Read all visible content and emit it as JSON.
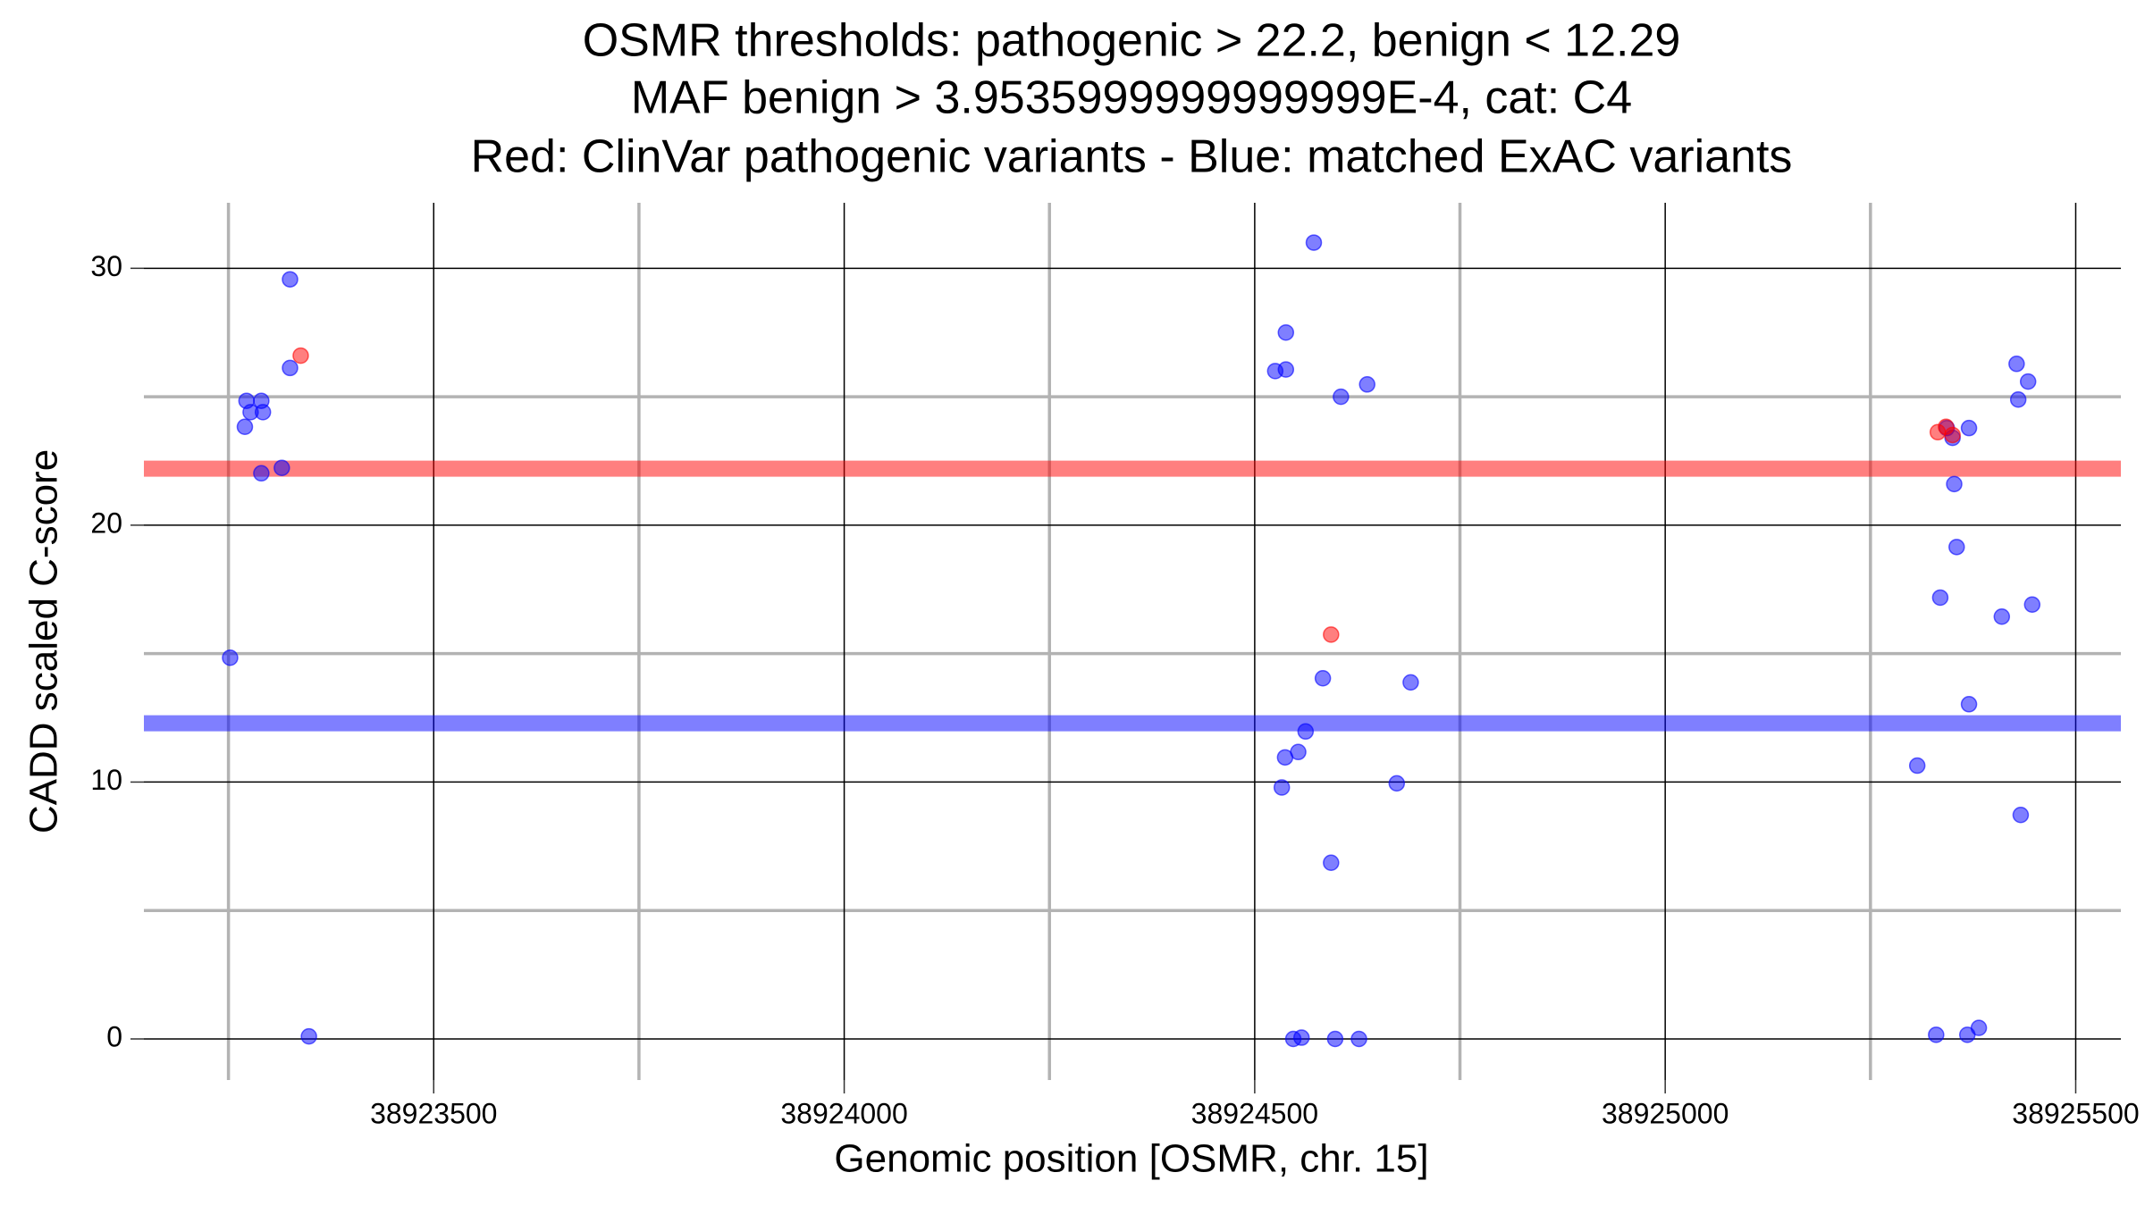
{
  "chart_data": {
    "type": "scatter",
    "title": [
      "OSMR thresholds: pathogenic > 22.2, benign < 12.29",
      "MAF benign > 3.9535999999999999E-4, cat: C4",
      "Red: ClinVar pathogenic variants - Blue: matched ExAC variants"
    ],
    "xlabel": "Genomic position [OSMR, chr. 15]",
    "ylabel": "CADD scaled C-score",
    "xlim": [
      38923147,
      38925555
    ],
    "ylim": [
      -1.6,
      32.55
    ],
    "xticks": [
      38923500,
      38924000,
      38924500,
      38925000,
      38925500
    ],
    "xminorticks": [
      38923250,
      38923750,
      38924250,
      38924750,
      38925250
    ],
    "yticks": [
      0,
      10,
      20,
      30
    ],
    "yminorticks": [
      5,
      15,
      25
    ],
    "grid": true,
    "hlines": [
      {
        "value": 22.2,
        "color": "#ff0000"
      },
      {
        "value": 12.29,
        "color": "#0000ff"
      }
    ],
    "series": [
      {
        "color": "#0000ff",
        "x": [
          38923252,
          38923272,
          38923277,
          38923270,
          38923290,
          38923292,
          38923290,
          38923315,
          38923325,
          38923325,
          38923348,
          38924572,
          38924538,
          38924525,
          38924538,
          38924605,
          38924637,
          38924583,
          38924690,
          38924562,
          38924537,
          38924553,
          38924533,
          38924673,
          38924593,
          38924547,
          38924557,
          38924598,
          38924627,
          38925428,
          38925442,
          38925430,
          38925370,
          38925350,
          38925343,
          38925352,
          38925355,
          38925335,
          38925410,
          38925447,
          38925370,
          38925307,
          38925433,
          38925330,
          38925368,
          38925382
        ],
        "values": [
          14.84,
          24.84,
          24.4,
          23.83,
          24.84,
          24.4,
          22.02,
          22.23,
          29.57,
          26.12,
          0.1,
          31.0,
          27.5,
          26.0,
          26.06,
          25.0,
          25.48,
          14.04,
          13.88,
          11.97,
          10.96,
          11.17,
          9.79,
          9.95,
          6.86,
          0,
          0.05,
          0,
          0,
          26.28,
          25.59,
          24.89,
          23.78,
          23.4,
          23.78,
          21.6,
          19.15,
          17.18,
          16.44,
          16.91,
          13.03,
          10.64,
          8.72,
          0.16,
          0.16,
          0.43
        ]
      },
      {
        "color": "#ff0000",
        "x": [
          38923338,
          38924593,
          38925332,
          38925342,
          38925350
        ],
        "values": [
          26.6,
          15.74,
          23.62,
          23.83,
          23.51
        ]
      }
    ]
  }
}
